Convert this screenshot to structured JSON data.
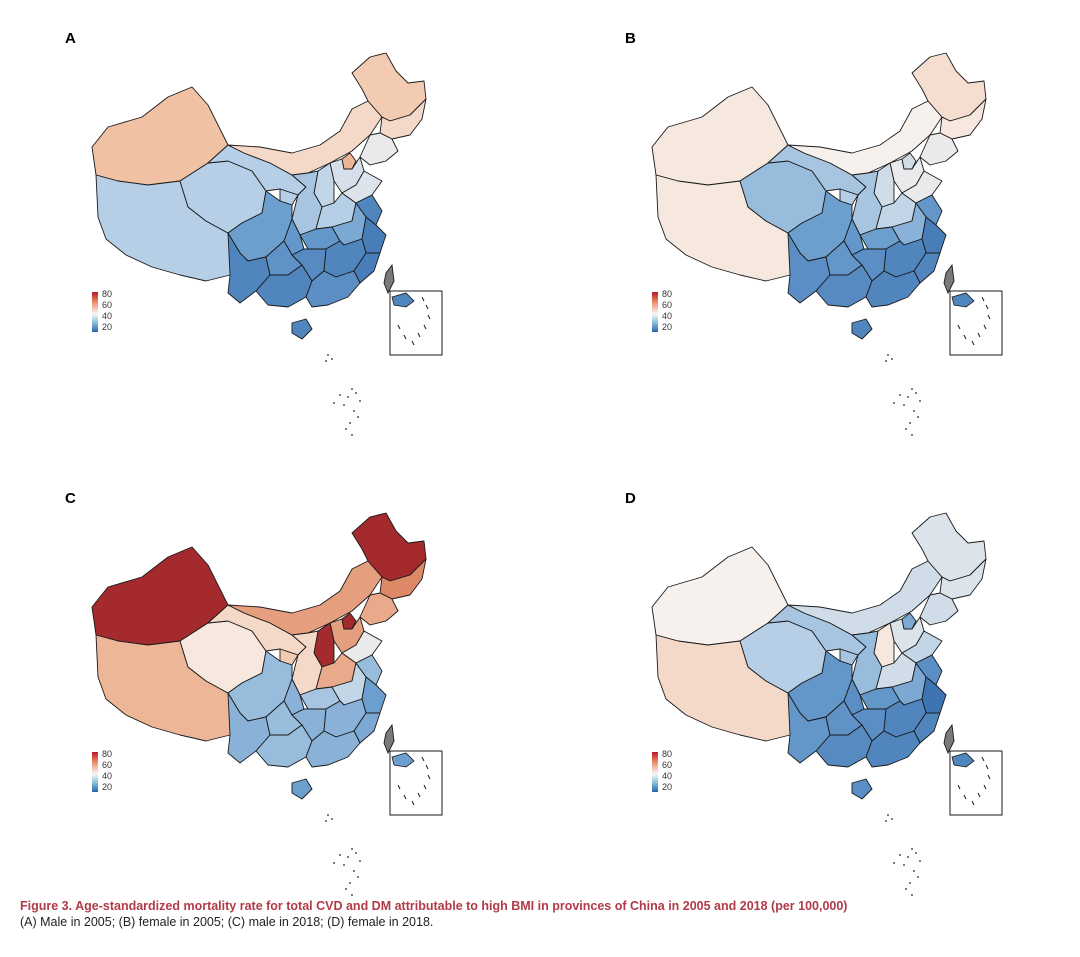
{
  "figure": {
    "caption_title": "Figure 3.  Age-standardized mortality rate for total CVD and DM attributable to high BMI in provinces of China in 2005 and 2018 (per 100,000)",
    "caption_text": "(A) Male in 2005; (B) female in 2005; (C) male in 2018; (D) female in 2018."
  },
  "legend": {
    "labels": [
      "80",
      "60",
      "40",
      "20"
    ]
  },
  "colors": {
    "v20": "#3f74b4",
    "v30": "#6c9fce",
    "v40": "#b6cfe6",
    "v50": "#f7f1ee",
    "v60": "#f1c1a3",
    "v70": "#dd8867",
    "v80": "#a52a2e",
    "taiwan": "#7a7a7a",
    "outline": "#1a1a1a"
  },
  "panels": [
    {
      "letter": "A",
      "description": "Male in 2005",
      "regions": {
        "xinjiang": 60,
        "tibet": 40,
        "qinghai": 40,
        "gansu": 40,
        "inner_mongolia": 55,
        "heilongjiang": 58,
        "jilin": 55,
        "liaoning": 48,
        "beijing_tianjin": 62,
        "hebei": 45,
        "shanxi": 42,
        "shaanxi": 38,
        "ningxia": 40,
        "henan": 40,
        "shandong": 46,
        "sichuan": 30,
        "chongqing": 28,
        "hubei": 28,
        "anhui": 32,
        "jiangsu": 24,
        "zhejiang": 22,
        "yunnan": 24,
        "guizhou": 27,
        "hunan": 25,
        "jiangxi": 24,
        "fujian": 22,
        "guangxi": 24,
        "guangdong": 26,
        "hainan": 24,
        "south_sea": 24
      }
    },
    {
      "letter": "B",
      "description": "female in 2005",
      "regions": {
        "xinjiang": 52,
        "tibet": 52,
        "qinghai": 36,
        "gansu": 38,
        "inner_mongolia": 50,
        "heilongjiang": 54,
        "jilin": 52,
        "liaoning": 48,
        "beijing_tianjin": 44,
        "hebei": 48,
        "shanxi": 44,
        "shaanxi": 38,
        "ningxia": 40,
        "henan": 42,
        "shandong": 48,
        "sichuan": 30,
        "chongqing": 28,
        "hubei": 30,
        "anhui": 34,
        "jiangsu": 28,
        "zhejiang": 22,
        "yunnan": 26,
        "guizhou": 28,
        "hunan": 26,
        "jiangxi": 24,
        "fujian": 24,
        "guangxi": 25,
        "guangdong": 24,
        "hainan": 24,
        "south_sea": 24
      }
    },
    {
      "letter": "C",
      "description": "male in 2018",
      "regions": {
        "xinjiang": 80,
        "tibet": 62,
        "qinghai": 52,
        "gansu": 55,
        "inner_mongolia": 66,
        "heilongjiang": 80,
        "jilin": 70,
        "liaoning": 64,
        "beijing_tianjin": 80,
        "hebei": 66,
        "shanxi": 80,
        "shaanxi": 55,
        "ningxia": 58,
        "henan": 64,
        "shandong": 48,
        "sichuan": 36,
        "chongqing": 34,
        "hubei": 38,
        "anhui": 42,
        "jiangsu": 36,
        "zhejiang": 30,
        "yunnan": 34,
        "guizhou": 36,
        "hunan": 34,
        "jiangxi": 34,
        "fujian": 32,
        "guangxi": 36,
        "guangdong": 34,
        "hainan": 30,
        "south_sea": 30
      }
    },
    {
      "letter": "D",
      "description": "female in 2018",
      "regions": {
        "xinjiang": 50,
        "tibet": 55,
        "qinghai": 40,
        "gansu": 38,
        "inner_mongolia": 44,
        "heilongjiang": 46,
        "jilin": 46,
        "liaoning": 44,
        "beijing_tianjin": 32,
        "hebei": 46,
        "shanxi": 52,
        "shaanxi": 36,
        "ningxia": 38,
        "henan": 44,
        "shandong": 42,
        "sichuan": 28,
        "chongqing": 26,
        "hubei": 28,
        "anhui": 32,
        "jiangsu": 26,
        "zhejiang": 20,
        "yunnan": 28,
        "guizhou": 27,
        "hunan": 26,
        "jiangxi": 24,
        "fujian": 24,
        "guangxi": 25,
        "guangdong": 24,
        "hainan": 26,
        "south_sea": 24
      }
    }
  ]
}
